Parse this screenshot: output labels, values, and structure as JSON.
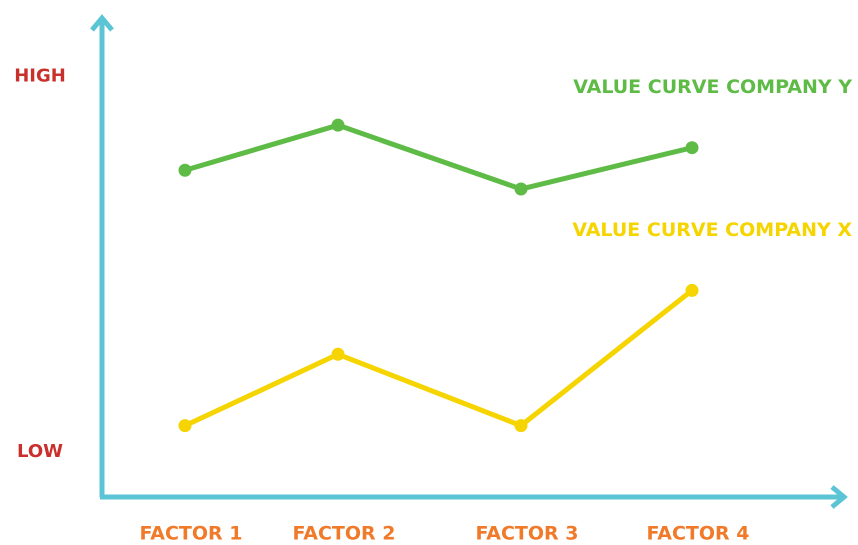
{
  "chart_data": {
    "type": "line",
    "categories": [
      "FACTOR 1",
      "FACTOR 2",
      "FACTOR 3",
      "FACTOR 4"
    ],
    "series": [
      {
        "name": "VALUE CURVE COMPANY Y",
        "color": "#5dbb46",
        "values": [
          7.5,
          8.7,
          7.0,
          8.1
        ]
      },
      {
        "name": "VALUE CURVE COMPANY X",
        "color": "#f5d400",
        "values": [
          0.7,
          2.6,
          0.7,
          4.3
        ]
      }
    ],
    "ylim": [
      -1.2,
      11.5
    ],
    "yticks": [
      {
        "value": 0,
        "label": "LOW"
      },
      {
        "value": 10,
        "label": "HIGH"
      }
    ],
    "grid": false
  }
}
